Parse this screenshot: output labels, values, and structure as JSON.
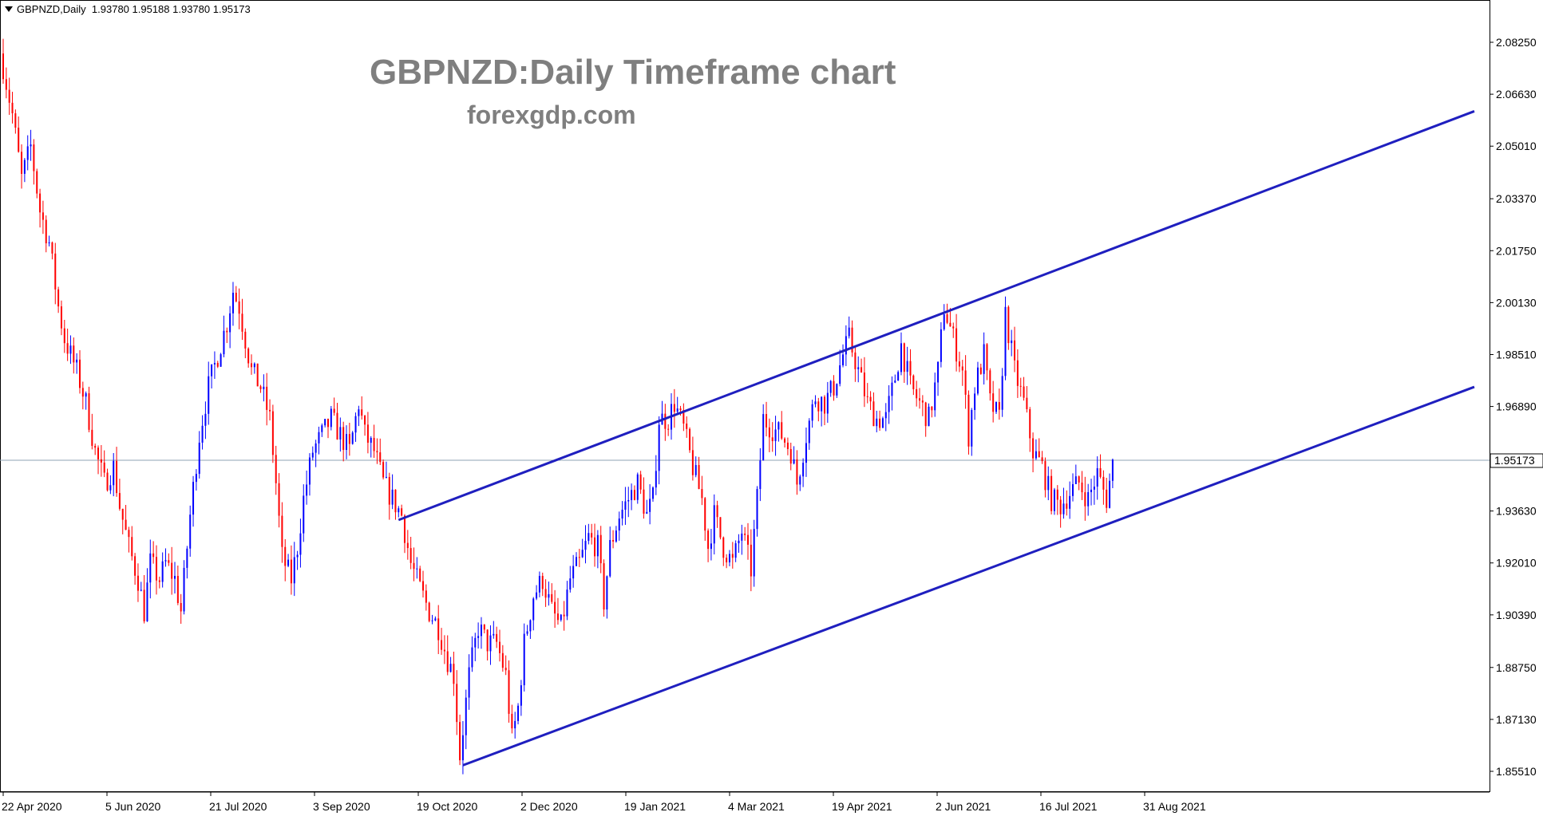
{
  "header": {
    "symbol_label": "GBPNZD,Daily",
    "ohlc": "1.93780 1.95188 1.93780 1.95173"
  },
  "chart_data": {
    "type": "candlestick",
    "title": "GBPNZD:Daily Timeframe chart",
    "subtitle": "forexgdp.com",
    "y_ticks": [
      "2.08250",
      "2.06630",
      "2.05010",
      "2.03370",
      "2.01750",
      "2.00130",
      "1.98510",
      "1.96890",
      "1.95173",
      "1.93630",
      "1.92010",
      "1.90390",
      "1.88750",
      "1.87130",
      "1.85510"
    ],
    "y_tick_values": [
      2.0825,
      2.0663,
      2.0501,
      2.0337,
      2.0175,
      2.0013,
      1.9851,
      1.9689,
      1.95173,
      1.9363,
      1.9201,
      1.9039,
      1.8875,
      1.8713,
      1.8551
    ],
    "x_ticks": [
      "22 Apr 2020",
      "5 Jun 2020",
      "21 Jul 2020",
      "3 Sep 2020",
      "19 Oct 2020",
      "2 Dec 2020",
      "19 Jan 2021",
      "4 Mar 2021",
      "19 Apr 2021",
      "2 Jun 2021",
      "16 Jul 2021",
      "31 Aug 2021"
    ],
    "ylim": [
      1.851,
      2.087
    ],
    "current_price": "1.95173",
    "up_color": "#0000ff",
    "down_color": "#ff0000",
    "trendline_color": "#1f1fbf",
    "price_line_color": "#8fa3b6",
    "close_path": [
      [
        0,
        2.075
      ],
      [
        3,
        2.06
      ],
      [
        6,
        2.04
      ],
      [
        9,
        2.05
      ],
      [
        12,
        2.03
      ],
      [
        15,
        2.02
      ],
      [
        18,
        2.0
      ],
      [
        20,
        1.99
      ],
      [
        24,
        1.98
      ],
      [
        27,
        1.97
      ],
      [
        30,
        1.955
      ],
      [
        33,
        1.945
      ],
      [
        36,
        1.95
      ],
      [
        38,
        1.938
      ],
      [
        41,
        1.925
      ],
      [
        44,
        1.915
      ],
      [
        46,
        1.905
      ],
      [
        48,
        1.92
      ],
      [
        51,
        1.915
      ],
      [
        53,
        1.92
      ],
      [
        56,
        1.915
      ],
      [
        58,
        1.905
      ],
      [
        61,
        1.935
      ],
      [
        64,
        1.96
      ],
      [
        67,
        1.975
      ],
      [
        70,
        1.985
      ],
      [
        73,
        1.995
      ],
      [
        75,
        2.005
      ],
      [
        77,
        2.0
      ],
      [
        79,
        1.99
      ],
      [
        81,
        1.98
      ],
      [
        84,
        1.975
      ],
      [
        87,
        1.965
      ],
      [
        89,
        1.945
      ],
      [
        91,
        1.922
      ],
      [
        94,
        1.915
      ],
      [
        96,
        1.925
      ],
      [
        98,
        1.94
      ],
      [
        101,
        1.955
      ],
      [
        104,
        1.96
      ],
      [
        107,
        1.965
      ],
      [
        110,
        1.96
      ],
      [
        113,
        1.955
      ],
      [
        116,
        1.97
      ],
      [
        118,
        1.96
      ],
      [
        121,
        1.955
      ],
      [
        124,
        1.945
      ],
      [
        127,
        1.94
      ],
      [
        130,
        1.935
      ],
      [
        133,
        1.92
      ],
      [
        136,
        1.912
      ],
      [
        139,
        1.905
      ],
      [
        142,
        1.9
      ],
      [
        145,
        1.89
      ],
      [
        147,
        1.885
      ],
      [
        149,
        1.86
      ],
      [
        152,
        1.885
      ],
      [
        155,
        1.9
      ],
      [
        158,
        1.895
      ],
      [
        161,
        1.895
      ],
      [
        164,
        1.885
      ],
      [
        166,
        1.865
      ],
      [
        168,
        1.875
      ],
      [
        170,
        1.895
      ],
      [
        173,
        1.91
      ],
      [
        176,
        1.915
      ],
      [
        179,
        1.905
      ],
      [
        182,
        1.9
      ],
      [
        185,
        1.915
      ],
      [
        188,
        1.92
      ],
      [
        191,
        1.928
      ],
      [
        194,
        1.925
      ],
      [
        196,
        1.908
      ],
      [
        198,
        1.925
      ],
      [
        201,
        1.935
      ],
      [
        204,
        1.94
      ],
      [
        207,
        1.945
      ],
      [
        210,
        1.935
      ],
      [
        212,
        1.94
      ],
      [
        214,
        1.965
      ],
      [
        217,
        1.965
      ],
      [
        219,
        1.97
      ],
      [
        222,
        1.962
      ],
      [
        225,
        1.95
      ],
      [
        228,
        1.94
      ],
      [
        230,
        1.925
      ],
      [
        232,
        1.935
      ],
      [
        235,
        1.925
      ],
      [
        238,
        1.92
      ],
      [
        241,
        1.93
      ],
      [
        244,
        1.918
      ],
      [
        246,
        1.94
      ],
      [
        248,
        1.965
      ],
      [
        251,
        1.962
      ],
      [
        254,
        1.96
      ],
      [
        257,
        1.955
      ],
      [
        259,
        1.945
      ],
      [
        262,
        1.96
      ],
      [
        265,
        1.972
      ],
      [
        268,
        1.97
      ],
      [
        271,
        1.975
      ],
      [
        274,
        1.985
      ],
      [
        276,
        1.99
      ],
      [
        279,
        1.98
      ],
      [
        282,
        1.97
      ],
      [
        285,
        1.965
      ],
      [
        288,
        1.965
      ],
      [
        291,
        1.978
      ],
      [
        293,
        1.988
      ],
      [
        296,
        1.975
      ],
      [
        299,
        1.97
      ],
      [
        302,
        1.965
      ],
      [
        305,
        1.98
      ],
      [
        307,
        2.0
      ],
      [
        310,
        1.99
      ],
      [
        313,
        1.98
      ],
      [
        315,
        1.96
      ],
      [
        317,
        1.975
      ],
      [
        320,
        1.985
      ],
      [
        322,
        1.97
      ],
      [
        325,
        1.965
      ],
      [
        327,
        1.998
      ],
      [
        330,
        1.98
      ],
      [
        333,
        1.97
      ],
      [
        336,
        1.955
      ],
      [
        339,
        1.95
      ],
      [
        342,
        1.94
      ],
      [
        345,
        1.938
      ],
      [
        348,
        1.942
      ],
      [
        351,
        1.945
      ],
      [
        354,
        1.94
      ],
      [
        357,
        1.948
      ],
      [
        360,
        1.94
      ],
      [
        362,
        1.951
      ]
    ],
    "trendlines": [
      {
        "from": [
          150,
          1.857
        ],
        "to": [
          480,
          1.975
        ]
      },
      {
        "from": [
          129,
          1.9335
        ],
        "to": [
          480,
          2.061
        ]
      }
    ]
  }
}
